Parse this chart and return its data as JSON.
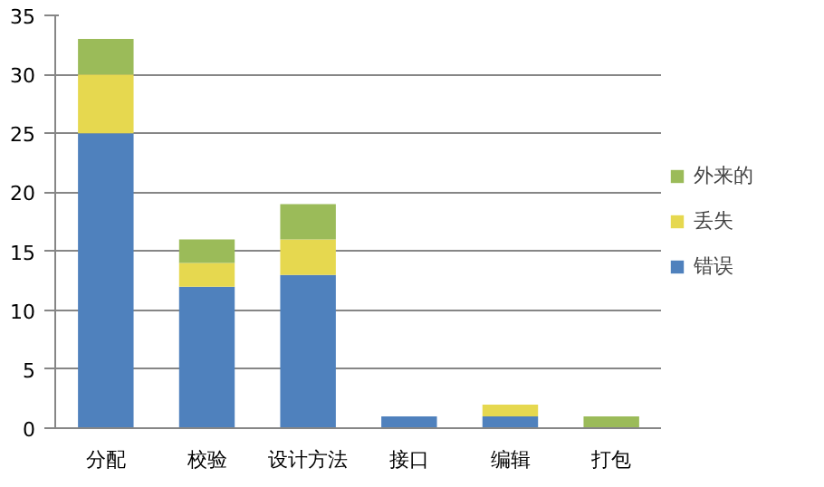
{
  "chart_data": {
    "type": "bar",
    "stacked": true,
    "categories": [
      "分配",
      "校验",
      "设计方法",
      "接口",
      "编辑",
      "打包"
    ],
    "series": [
      {
        "name": "错误",
        "color": "#4f81bd",
        "values": [
          25,
          12,
          13,
          1,
          1,
          0
        ]
      },
      {
        "name": "丢失",
        "color": "#e6d84f",
        "values": [
          5,
          2,
          3,
          0,
          1,
          0
        ]
      },
      {
        "name": "外来的",
        "color": "#9bbb59",
        "values": [
          3,
          2,
          3,
          0,
          0,
          1
        ]
      }
    ],
    "ylim": [
      0,
      35
    ],
    "yticks": [
      0,
      5,
      10,
      15,
      20,
      25,
      30,
      35
    ],
    "grid": "y",
    "legend": "right"
  }
}
